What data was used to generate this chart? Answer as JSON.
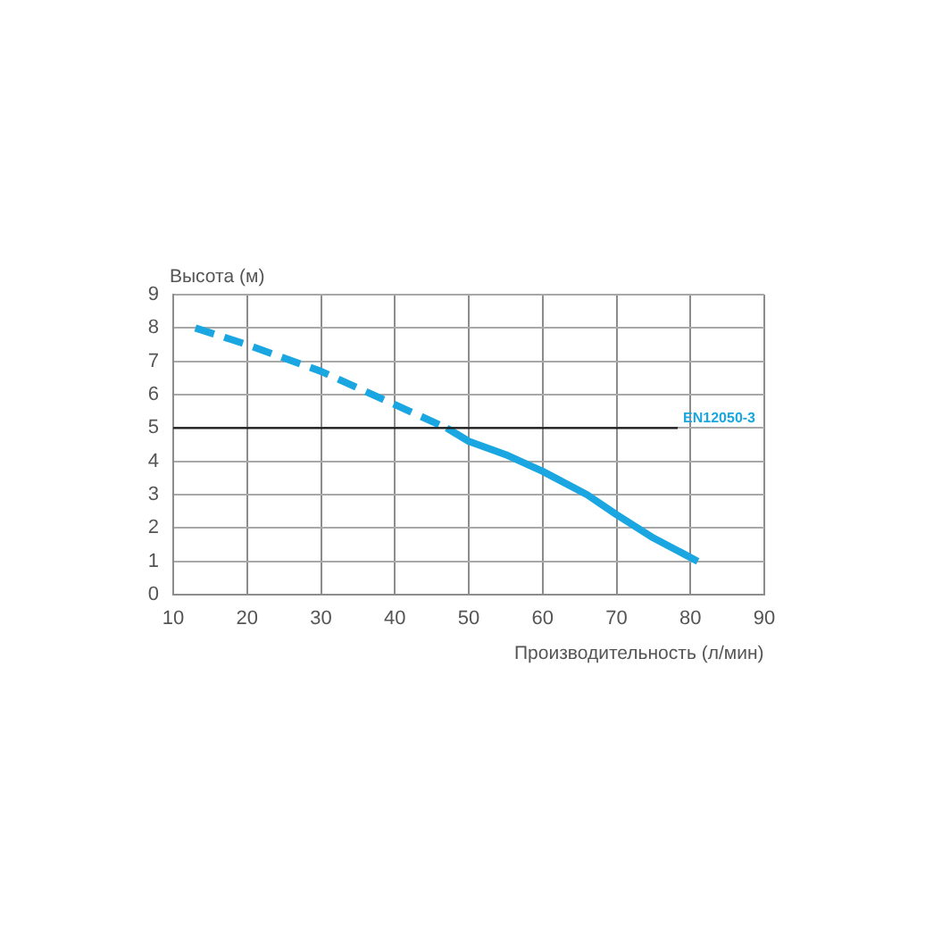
{
  "chart_data": {
    "type": "line",
    "xlabel": "Производительность (л/мин)",
    "ylabel": "Высота (м)",
    "xlim": [
      10,
      90
    ],
    "ylim": [
      0,
      9
    ],
    "xticks": [
      10,
      20,
      30,
      40,
      50,
      60,
      70,
      80,
      90
    ],
    "yticks": [
      0,
      1,
      2,
      3,
      4,
      5,
      6,
      7,
      8,
      9
    ],
    "grid": true,
    "legend": false,
    "marker": "none",
    "series": [
      {
        "color": "#1aa7e1",
        "line_style": "dashed",
        "x": [
          13,
          20,
          25,
          30,
          35,
          40,
          47
        ],
        "values": [
          8,
          7.5,
          7.1,
          6.7,
          6.2,
          5.7,
          5
        ]
      },
      {
        "color": "#1aa7e1",
        "line_style": "solid",
        "x": [
          47,
          50,
          55,
          60,
          66,
          70,
          75,
          81
        ],
        "values": [
          5,
          4.6,
          4.2,
          3.7,
          3,
          2.4,
          1.7,
          1
        ]
      }
    ],
    "ref_lines": [
      {
        "axis": "y",
        "value": 5,
        "label": "EN12050-3",
        "color": "#1a1a1a"
      }
    ]
  }
}
